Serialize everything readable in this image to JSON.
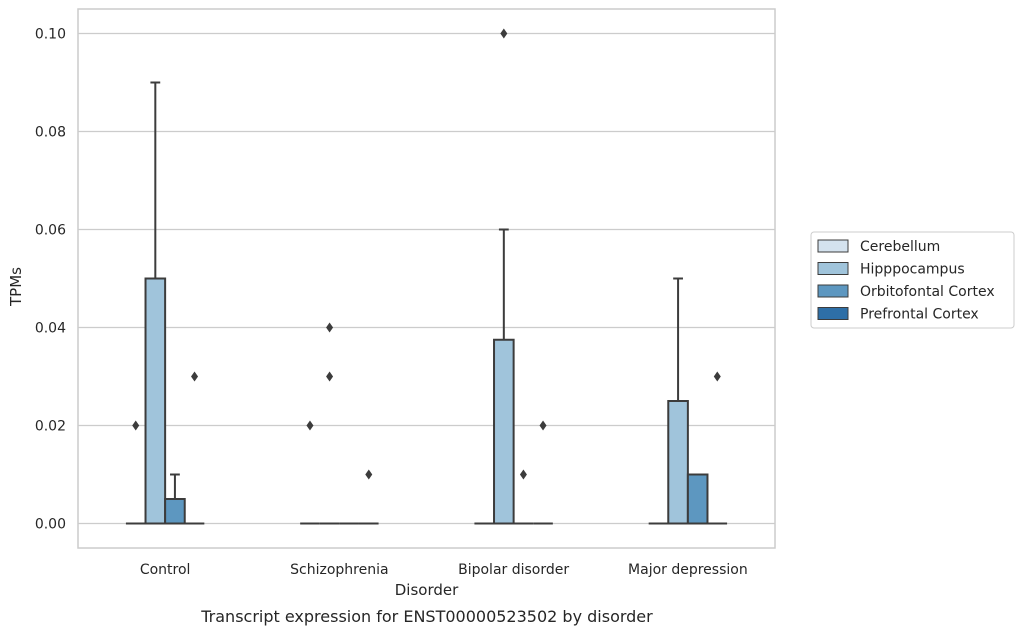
{
  "chart_data": {
    "type": "box",
    "xlabel": "Disorder",
    "ylabel": "TPMs",
    "caption": "Transcript expression for ENST00000523502 by disorder",
    "categories": [
      "Control",
      "Schizophrenia",
      "Bipolar disorder",
      "Major depression"
    ],
    "ylim": [
      -0.005,
      0.105
    ],
    "yticks": [
      0.0,
      0.02,
      0.04,
      0.06,
      0.08,
      0.1
    ],
    "ytick_labels": [
      "0.00",
      "0.02",
      "0.04",
      "0.06",
      "0.08",
      "0.10"
    ],
    "grid": true,
    "legend_position": "right",
    "series": [
      {
        "name": "Cerebellum",
        "color": "#d4e2ee",
        "boxes": [
          {
            "category": "Control",
            "q1": 0.0,
            "median": 0.0,
            "q3": 0.0,
            "whisker_low": 0.0,
            "whisker_high": 0.0,
            "outliers": [
              0.02
            ]
          },
          {
            "category": "Schizophrenia",
            "q1": 0.0,
            "median": 0.0,
            "q3": 0.0,
            "whisker_low": 0.0,
            "whisker_high": 0.0,
            "outliers": [
              0.02
            ]
          },
          {
            "category": "Bipolar disorder",
            "q1": 0.0,
            "median": 0.0,
            "q3": 0.0,
            "whisker_low": 0.0,
            "whisker_high": 0.0,
            "outliers": []
          },
          {
            "category": "Major depression",
            "q1": 0.0,
            "median": 0.0,
            "q3": 0.0,
            "whisker_low": 0.0,
            "whisker_high": 0.0,
            "outliers": []
          }
        ]
      },
      {
        "name": "Hipppocampus",
        "color": "#a0c4db",
        "boxes": [
          {
            "category": "Control",
            "q1": 0.0,
            "median": 0.0,
            "q3": 0.05,
            "whisker_low": 0.0,
            "whisker_high": 0.09,
            "outliers": []
          },
          {
            "category": "Schizophrenia",
            "q1": 0.0,
            "median": 0.0,
            "q3": 0.0,
            "whisker_low": 0.0,
            "whisker_high": 0.0,
            "outliers": [
              0.03,
              0.04
            ]
          },
          {
            "category": "Bipolar disorder",
            "q1": 0.0,
            "median": 0.0,
            "q3": 0.0375,
            "whisker_low": 0.0,
            "whisker_high": 0.06,
            "outliers": [
              0.1
            ]
          },
          {
            "category": "Major depression",
            "q1": 0.0,
            "median": 0.0,
            "q3": 0.025,
            "whisker_low": 0.0,
            "whisker_high": 0.05,
            "outliers": []
          }
        ]
      },
      {
        "name": "Orbitofontal Cortex",
        "color": "#5d97c0",
        "boxes": [
          {
            "category": "Control",
            "q1": 0.0,
            "median": 0.0,
            "q3": 0.005,
            "whisker_low": 0.0,
            "whisker_high": 0.01,
            "outliers": []
          },
          {
            "category": "Schizophrenia",
            "q1": 0.0,
            "median": 0.0,
            "q3": 0.0,
            "whisker_low": 0.0,
            "whisker_high": 0.0,
            "outliers": []
          },
          {
            "category": "Bipolar disorder",
            "q1": 0.0,
            "median": 0.0,
            "q3": 0.0,
            "whisker_low": 0.0,
            "whisker_high": 0.0,
            "outliers": [
              0.01
            ]
          },
          {
            "category": "Major depression",
            "q1": 0.0,
            "median": 0.0,
            "q3": 0.01,
            "whisker_low": 0.0,
            "whisker_high": 0.01,
            "outliers": []
          }
        ]
      },
      {
        "name": "Prefrontal Cortex",
        "color": "#2e6fa7",
        "boxes": [
          {
            "category": "Control",
            "q1": 0.0,
            "median": 0.0,
            "q3": 0.0,
            "whisker_low": 0.0,
            "whisker_high": 0.0,
            "outliers": [
              0.03
            ]
          },
          {
            "category": "Schizophrenia",
            "q1": 0.0,
            "median": 0.0,
            "q3": 0.0,
            "whisker_low": 0.0,
            "whisker_high": 0.0,
            "outliers": [
              0.01
            ]
          },
          {
            "category": "Bipolar disorder",
            "q1": 0.0,
            "median": 0.0,
            "q3": 0.0,
            "whisker_low": 0.0,
            "whisker_high": 0.0,
            "outliers": [
              0.02
            ]
          },
          {
            "category": "Major depression",
            "q1": 0.0,
            "median": 0.0,
            "q3": 0.0,
            "whisker_low": 0.0,
            "whisker_high": 0.0,
            "outliers": [
              0.03
            ]
          }
        ]
      }
    ]
  }
}
